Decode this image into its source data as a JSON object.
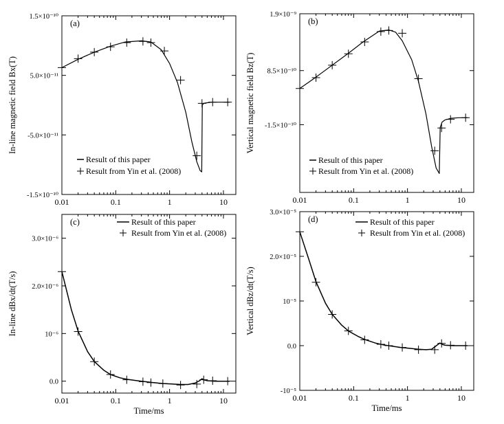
{
  "chart_data": [
    {
      "id": "a",
      "type": "line",
      "panel_label": "(a)",
      "ylabel": "In-line magnetic field Bx(T)",
      "xlabel": "",
      "xscale": "log",
      "xlim": [
        0.01,
        17
      ],
      "ylim": [
        -1.5e-10,
        1.5e-10
      ],
      "xticks": [
        0.01,
        0.1,
        1,
        10
      ],
      "xtick_labels": [
        "0.01",
        "0.1",
        "1",
        "10"
      ],
      "yticks": [
        1.5e-10,
        5e-11,
        -5e-11,
        -1.5e-10
      ],
      "ytick_labels": [
        "1.5×10⁻¹⁰",
        "5.0×10⁻¹¹",
        "-5.0×10⁻¹¹",
        "-1.5×10⁻¹⁰"
      ],
      "legend": {
        "placement": "bottom-left",
        "entries": [
          "Result of this paper",
          "Result from Yin et al. (2008)"
        ]
      },
      "series": [
        {
          "name": "Result of this paper",
          "style": "line",
          "x": [
            0.01,
            0.02,
            0.04,
            0.08,
            0.15,
            0.3,
            0.45,
            0.7,
            1.0,
            1.4,
            2.0,
            2.6,
            3.2,
            3.7,
            3.95,
            4.05,
            4.3,
            5,
            6,
            8,
            13
          ],
          "y": [
            6.3e-11,
            7.7e-11,
            8.9e-11,
            9.9e-11,
            1.06e-10,
            1.08e-10,
            1.06e-10,
            9.3e-11,
            7e-11,
            3.8e-11,
            -1.2e-11,
            -6.2e-11,
            -9.5e-11,
            -1.1e-10,
            -1.12e-10,
            0.0,
            3e-12,
            4e-12,
            5e-12,
            5e-12,
            5e-12
          ]
        },
        {
          "name": "Result from Yin et al. (2008)",
          "style": "plus",
          "x": [
            0.01,
            0.02,
            0.04,
            0.08,
            0.16,
            0.32,
            0.45,
            0.8,
            1.6,
            3.2,
            4.0,
            6.3,
            12
          ],
          "y": [
            6.3e-11,
            7.8e-11,
            8.9e-11,
            9.8e-11,
            1.05e-10,
            1.07e-10,
            1.05e-10,
            9.1e-11,
            4.2e-11,
            -8.5e-11,
            3e-12,
            5e-12,
            5e-12
          ]
        }
      ]
    },
    {
      "id": "b",
      "type": "line",
      "panel_label": "(b)",
      "ylabel": "Vertical magnetic field Bz(T)",
      "xlabel": "",
      "xscale": "log",
      "xlim": [
        0.01,
        17
      ],
      "ylim": [
        -1.4e-09,
        1.9e-09
      ],
      "xticks": [
        0.01,
        0.1,
        1,
        10
      ],
      "xtick_labels": [
        "0.01",
        "0.1",
        "1",
        "10"
      ],
      "yticks": [
        1.9e-09,
        8.5e-10,
        -1.5e-10
      ],
      "ytick_labels": [
        "1.9×10⁻⁹",
        "8.5×10⁻¹⁰",
        "-1.5×10⁻¹⁰"
      ],
      "legend": {
        "placement": "bottom-left",
        "entries": [
          "Result of this paper",
          "Result from Yin et al. (2008)"
        ]
      },
      "series": [
        {
          "name": "Result of this paper",
          "style": "line",
          "x": [
            0.01,
            0.02,
            0.04,
            0.08,
            0.15,
            0.3,
            0.45,
            0.6,
            0.8,
            1.2,
            1.6,
            2.2,
            2.8,
            3.4,
            3.9,
            4.05,
            4.4,
            5,
            6.5,
            9,
            13
          ],
          "y": [
            5.2e-10,
            7.3e-10,
            9.5e-10,
            1.17e-09,
            1.38e-09,
            1.58e-09,
            1.6e-09,
            1.56e-09,
            1.4e-09,
            1.05e-09,
            6.5e-10,
            5e-11,
            -5.5e-10,
            -9.5e-10,
            -1.05e-09,
            -2e-10,
            -1e-10,
            -6e-11,
            -3e-11,
            -2e-11,
            -2e-11
          ]
        },
        {
          "name": "Result from Yin et al. (2008)",
          "style": "plus",
          "x": [
            0.01,
            0.02,
            0.04,
            0.08,
            0.16,
            0.32,
            0.45,
            0.8,
            1.6,
            3.2,
            4.3,
            6.3,
            12
          ],
          "y": [
            5.2e-10,
            7.2e-10,
            9.5e-10,
            1.16e-09,
            1.38e-09,
            1.57e-09,
            1.59e-09,
            1.54e-09,
            7e-10,
            -6.3e-10,
            -2.1e-10,
            -5e-11,
            -2e-11
          ]
        }
      ]
    },
    {
      "id": "c",
      "type": "line",
      "panel_label": "(c)",
      "ylabel": "In-line dBx/dt(T/s)",
      "xlabel": "Time/ms",
      "xscale": "log",
      "xlim": [
        0.01,
        17
      ],
      "ylim": [
        -2.5e-07,
        3.5e-06
      ],
      "xticks": [
        0.01,
        0.1,
        1,
        10
      ],
      "xtick_labels": [
        "0.01",
        "0.1",
        "1",
        "10"
      ],
      "yticks": [
        3e-06,
        2e-06,
        1e-06,
        0.0
      ],
      "ytick_labels": [
        "3.0×10⁻⁶",
        "2.0×10⁻⁶",
        "10⁻⁶",
        "0.0"
      ],
      "legend": {
        "placement": "top-right",
        "entries": [
          "Result of this paper",
          "Result from Yin et al. (2008)"
        ]
      },
      "series": [
        {
          "name": "Result of this paper",
          "style": "line",
          "x": [
            0.01,
            0.015,
            0.02,
            0.03,
            0.04,
            0.06,
            0.08,
            0.12,
            0.16,
            0.25,
            0.35,
            0.5,
            0.75,
            1.1,
            1.6,
            2.2,
            3.0,
            3.6,
            4.0,
            4.3,
            5,
            7,
            13
          ],
          "y": [
            2.3e-06,
            1.5e-06,
            1.05e-06,
            6.2e-07,
            4.1e-07,
            2.3e-07,
            1.4e-07,
            7e-08,
            4e-08,
            1e-08,
            -1e-08,
            -3e-08,
            -5e-08,
            -6e-08,
            -7e-08,
            -7e-08,
            -4e-08,
            1e-08,
            5e-08,
            3e-08,
            1e-08,
            0.0,
            0.0
          ]
        },
        {
          "name": "Result from Yin et al. (2008)",
          "style": "plus",
          "x": [
            0.01,
            0.02,
            0.04,
            0.08,
            0.16,
            0.32,
            0.45,
            0.75,
            1.6,
            3.2,
            4.3,
            6.3,
            12
          ],
          "y": [
            2.3e-06,
            1.04e-06,
            4.1e-07,
            1.4e-07,
            3e-08,
            -1e-08,
            -3e-08,
            -5e-08,
            -8e-08,
            -6e-08,
            3e-08,
            1e-08,
            0.0
          ]
        }
      ]
    },
    {
      "id": "d",
      "type": "line",
      "panel_label": "(d)",
      "ylabel": "Vertical dBz/dt(T/s)",
      "xlabel": "Time/ms",
      "xscale": "log",
      "xlim": [
        0.01,
        17
      ],
      "ylim": [
        -1e-05,
        3e-05
      ],
      "xticks": [
        0.01,
        0.1,
        1,
        10
      ],
      "xtick_labels": [
        "0.01",
        "0.1",
        "1",
        "10"
      ],
      "yticks": [
        3e-05,
        2e-05,
        1e-05,
        0.0,
        -1e-05
      ],
      "ytick_labels": [
        "3.0×10⁻⁵",
        "2.0×10⁻⁵",
        "10⁻⁵",
        "0.0",
        "-10⁻⁵"
      ],
      "legend": {
        "placement": "top-right",
        "entries": [
          "Result of this paper",
          "Result from Yin et al. (2008)"
        ]
      },
      "series": [
        {
          "name": "Result of this paper",
          "style": "line",
          "x": [
            0.01,
            0.015,
            0.02,
            0.03,
            0.04,
            0.06,
            0.08,
            0.12,
            0.16,
            0.25,
            0.35,
            0.5,
            0.75,
            1.1,
            1.6,
            2.2,
            2.8,
            3.2,
            3.7,
            4.0,
            4.4,
            5,
            7,
            13
          ],
          "y": [
            2.55e-05,
            1.9e-05,
            1.43e-05,
            9.5e-06,
            7e-06,
            4.6e-06,
            3.3e-06,
            2.1e-06,
            1.4e-06,
            6e-07,
            2e-07,
            -1e-07,
            -4e-07,
            -6e-07,
            -8e-07,
            -9e-07,
            -8e-07,
            -3e-07,
            3e-07,
            6e-07,
            3e-07,
            1e-07,
            0.0,
            0.0
          ]
        },
        {
          "name": "Result from Yin et al. (2008)",
          "style": "plus",
          "x": [
            0.01,
            0.02,
            0.04,
            0.08,
            0.16,
            0.32,
            0.45,
            0.8,
            1.6,
            3.2,
            4.3,
            6.3,
            12
          ],
          "y": [
            2.55e-05,
            1.42e-05,
            7e-06,
            3.3e-06,
            1.3e-06,
            3e-07,
            0.0,
            -4e-07,
            -9e-07,
            -9e-07,
            5e-07,
            1e-07,
            0.0
          ]
        }
      ]
    }
  ]
}
